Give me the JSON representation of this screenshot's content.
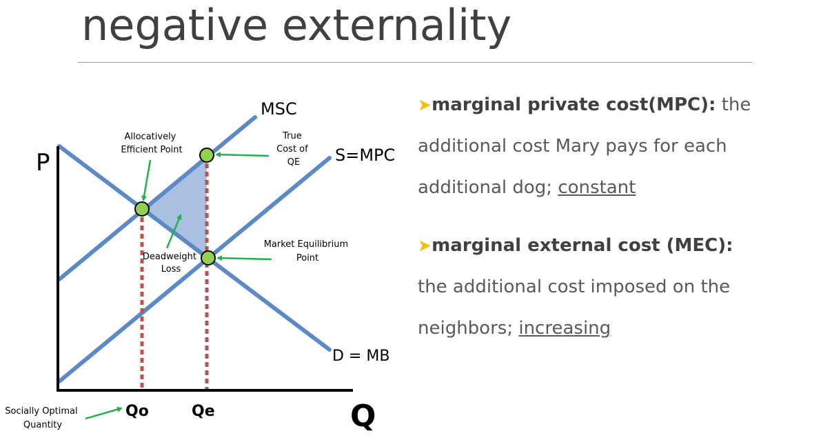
{
  "slide": {
    "title": "negative externality"
  },
  "diagram": {
    "axis_p": "P",
    "axis_q": "Q",
    "curve_msc": "MSC",
    "curve_supply": "S=MPC",
    "curve_demand": "D = MB",
    "tick_qo": "Qo",
    "tick_qe": "Qe",
    "label_allocative": [
      "Allocatively",
      "Efficient Point"
    ],
    "label_true_cost": [
      "True",
      "Cost of",
      "QE"
    ],
    "label_market_eq": [
      "Market Equilibrium",
      "Point"
    ],
    "label_dwl": [
      "Deadweight",
      "Loss"
    ],
    "label_social_qty": [
      "Socially Optimal",
      "Quantity"
    ],
    "colors": {
      "curve": "#5b8ac6",
      "point_fill": "#92d050",
      "arrow": "#22b14c",
      "dotted": "#c0504d",
      "dwl_fill": "#a9c0e0"
    }
  },
  "bullets": [
    {
      "term": "marginal private cost(MPC):",
      "lines": [
        "the",
        "additional cost Mary pays for each",
        "additional dog; "
      ],
      "emph": "constant"
    },
    {
      "term": "marginal external cost (MEC):",
      "lines": [
        "",
        "the additional cost imposed on the",
        "neighbors; "
      ],
      "emph": "increasing"
    }
  ]
}
